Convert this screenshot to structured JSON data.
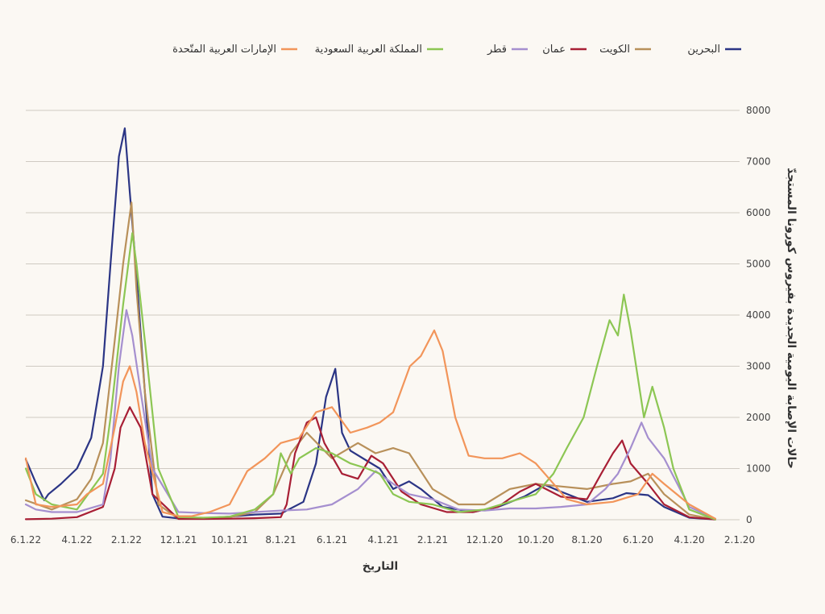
{
  "chart_data": {
    "type": "line",
    "title": "",
    "xlabel": "التاريخ",
    "ylabel": "حالات الإصابة اليومية الجديدة بفيروس كورونا المستجدّ",
    "ylim": [
      0,
      8000
    ],
    "yticks": [
      0,
      1000,
      2000,
      3000,
      4000,
      5000,
      6000,
      7000,
      8000
    ],
    "x_reversed": true,
    "x_domain": [
      "2020-02-01",
      "2022-06-01"
    ],
    "xticks": [
      {
        "date": "2020-02-01",
        "label": "2.1.20"
      },
      {
        "date": "2020-04-01",
        "label": "4.1.20"
      },
      {
        "date": "2020-06-01",
        "label": "6.1.20"
      },
      {
        "date": "2020-08-01",
        "label": "8.1.20"
      },
      {
        "date": "2020-10-01",
        "label": "10.1.20"
      },
      {
        "date": "2020-12-01",
        "label": "12.1.20"
      },
      {
        "date": "2021-02-01",
        "label": "2.1.21"
      },
      {
        "date": "2021-04-01",
        "label": "4.1.21"
      },
      {
        "date": "2021-06-01",
        "label": "6.1.21"
      },
      {
        "date": "2021-08-01",
        "label": "8.1.21"
      },
      {
        "date": "2021-10-01",
        "label": "10.1.21"
      },
      {
        "date": "2021-12-01",
        "label": "12.1.21"
      },
      {
        "date": "2022-02-01",
        "label": "2.1.22"
      },
      {
        "date": "2022-04-01",
        "label": "4.1.22"
      },
      {
        "date": "2022-06-01",
        "label": "6.1.22"
      }
    ],
    "legend_position": "top",
    "series": [
      {
        "name": "البحرين",
        "color": "#2b3585",
        "points": [
          [
            "2020-03-01",
            5
          ],
          [
            "2020-04-01",
            40
          ],
          [
            "2020-05-01",
            250
          ],
          [
            "2020-05-20",
            480
          ],
          [
            "2020-06-15",
            520
          ],
          [
            "2020-07-01",
            420
          ],
          [
            "2020-08-01",
            350
          ],
          [
            "2020-09-01",
            550
          ],
          [
            "2020-09-20",
            680
          ],
          [
            "2020-10-15",
            450
          ],
          [
            "2020-11-15",
            250
          ],
          [
            "2020-12-15",
            150
          ],
          [
            "2021-01-20",
            250
          ],
          [
            "2021-02-15",
            600
          ],
          [
            "2021-03-01",
            750
          ],
          [
            "2021-03-20",
            600
          ],
          [
            "2021-04-05",
            1000
          ],
          [
            "2021-04-20",
            1150
          ],
          [
            "2021-05-10",
            1350
          ],
          [
            "2021-05-20",
            1700
          ],
          [
            "2021-05-28",
            2950
          ],
          [
            "2021-06-08",
            2400
          ],
          [
            "2021-06-20",
            1100
          ],
          [
            "2021-07-05",
            350
          ],
          [
            "2021-08-01",
            120
          ],
          [
            "2021-09-01",
            100
          ],
          [
            "2021-10-01",
            60
          ],
          [
            "2021-11-01",
            30
          ],
          [
            "2021-12-01",
            25
          ],
          [
            "2021-12-20",
            60
          ],
          [
            "2022-01-01",
            500
          ],
          [
            "2022-01-10",
            2500
          ],
          [
            "2022-01-20",
            4800
          ],
          [
            "2022-01-28",
            6400
          ],
          [
            "2022-02-03",
            7650
          ],
          [
            "2022-02-10",
            7100
          ],
          [
            "2022-02-20",
            5000
          ],
          [
            "2022-03-01",
            3000
          ],
          [
            "2022-03-15",
            1600
          ],
          [
            "2022-04-01",
            1000
          ],
          [
            "2022-04-20",
            700
          ],
          [
            "2022-05-05",
            500
          ],
          [
            "2022-05-10",
            380
          ],
          [
            "2022-05-20",
            720
          ],
          [
            "2022-06-01",
            1180
          ]
        ]
      },
      {
        "name": "الكويت",
        "color": "#b8905a",
        "points": [
          [
            "2020-03-01",
            5
          ],
          [
            "2020-04-01",
            100
          ],
          [
            "2020-05-01",
            500
          ],
          [
            "2020-05-20",
            900
          ],
          [
            "2020-06-10",
            750
          ],
          [
            "2020-07-01",
            700
          ],
          [
            "2020-08-01",
            600
          ],
          [
            "2020-09-01",
            650
          ],
          [
            "2020-10-01",
            700
          ],
          [
            "2020-11-01",
            600
          ],
          [
            "2020-12-01",
            300
          ],
          [
            "2021-01-01",
            300
          ],
          [
            "2021-02-01",
            600
          ],
          [
            "2021-03-01",
            1300
          ],
          [
            "2021-03-20",
            1400
          ],
          [
            "2021-04-10",
            1300
          ],
          [
            "2021-05-01",
            1500
          ],
          [
            "2021-06-01",
            1200
          ],
          [
            "2021-07-01",
            1700
          ],
          [
            "2021-07-20",
            1300
          ],
          [
            "2021-08-10",
            500
          ],
          [
            "2021-09-01",
            150
          ],
          [
            "2021-10-01",
            50
          ],
          [
            "2021-11-01",
            20
          ],
          [
            "2021-12-01",
            20
          ],
          [
            "2021-12-25",
            300
          ],
          [
            "2022-01-10",
            2500
          ],
          [
            "2022-01-20",
            4500
          ],
          [
            "2022-01-26",
            6200
          ],
          [
            "2022-02-05",
            5000
          ],
          [
            "2022-02-15",
            3500
          ],
          [
            "2022-03-01",
            1500
          ],
          [
            "2022-03-15",
            800
          ],
          [
            "2022-04-01",
            400
          ],
          [
            "2022-05-01",
            200
          ],
          [
            "2022-06-01",
            380
          ]
        ]
      },
      {
        "name": "عمان",
        "color": "#a81f35",
        "points": [
          [
            "2020-03-01",
            5
          ],
          [
            "2020-04-01",
            50
          ],
          [
            "2020-05-01",
            300
          ],
          [
            "2020-05-20",
            700
          ],
          [
            "2020-06-10",
            1100
          ],
          [
            "2020-06-20",
            1550
          ],
          [
            "2020-07-01",
            1300
          ],
          [
            "2020-07-15",
            900
          ],
          [
            "2020-08-01",
            400
          ],
          [
            "2020-09-01",
            450
          ],
          [
            "2020-10-01",
            700
          ],
          [
            "2020-10-20",
            550
          ],
          [
            "2020-11-15",
            250
          ],
          [
            "2020-12-15",
            150
          ],
          [
            "2021-01-15",
            150
          ],
          [
            "2021-02-15",
            300
          ],
          [
            "2021-03-10",
            550
          ],
          [
            "2021-04-01",
            1100
          ],
          [
            "2021-04-15",
            1250
          ],
          [
            "2021-05-01",
            800
          ],
          [
            "2021-05-20",
            900
          ],
          [
            "2021-06-10",
            1500
          ],
          [
            "2021-06-20",
            2000
          ],
          [
            "2021-07-01",
            1900
          ],
          [
            "2021-07-15",
            1300
          ],
          [
            "2021-07-25",
            300
          ],
          [
            "2021-08-01",
            50
          ],
          [
            "2021-09-01",
            30
          ],
          [
            "2021-10-01",
            20
          ],
          [
            "2021-11-01",
            15
          ],
          [
            "2021-12-01",
            15
          ],
          [
            "2022-01-01",
            500
          ],
          [
            "2022-01-15",
            1800
          ],
          [
            "2022-01-28",
            2200
          ],
          [
            "2022-02-08",
            1800
          ],
          [
            "2022-02-15",
            1000
          ],
          [
            "2022-03-01",
            250
          ],
          [
            "2022-04-01",
            50
          ],
          [
            "2022-05-01",
            20
          ],
          [
            "2022-06-01",
            10
          ]
        ]
      },
      {
        "name": "قطر",
        "color": "#a58fcf",
        "points": [
          [
            "2020-03-01",
            20
          ],
          [
            "2020-04-01",
            250
          ],
          [
            "2020-05-01",
            1200
          ],
          [
            "2020-05-20",
            1600
          ],
          [
            "2020-05-28",
            1900
          ],
          [
            "2020-06-10",
            1400
          ],
          [
            "2020-06-25",
            900
          ],
          [
            "2020-07-10",
            600
          ],
          [
            "2020-08-01",
            300
          ],
          [
            "2020-09-01",
            250
          ],
          [
            "2020-10-01",
            220
          ],
          [
            "2020-11-01",
            220
          ],
          [
            "2020-12-01",
            180
          ],
          [
            "2021-01-01",
            200
          ],
          [
            "2021-02-01",
            400
          ],
          [
            "2021-03-01",
            500
          ],
          [
            "2021-03-20",
            700
          ],
          [
            "2021-04-10",
            950
          ],
          [
            "2021-05-01",
            600
          ],
          [
            "2021-06-01",
            300
          ],
          [
            "2021-07-01",
            200
          ],
          [
            "2021-08-01",
            180
          ],
          [
            "2021-09-01",
            150
          ],
          [
            "2021-10-01",
            120
          ],
          [
            "2021-11-01",
            130
          ],
          [
            "2021-12-01",
            150
          ],
          [
            "2022-01-01",
            1000
          ],
          [
            "2022-01-15",
            2500
          ],
          [
            "2022-01-25",
            3600
          ],
          [
            "2022-02-01",
            4100
          ],
          [
            "2022-02-10",
            3000
          ],
          [
            "2022-02-20",
            1200
          ],
          [
            "2022-03-01",
            300
          ],
          [
            "2022-04-01",
            150
          ],
          [
            "2022-05-01",
            150
          ],
          [
            "2022-05-20",
            200
          ],
          [
            "2022-06-01",
            300
          ]
        ]
      },
      {
        "name": "المملكة العربية السعودية",
        "color": "#8cc653",
        "points": [
          [
            "2020-03-01",
            5
          ],
          [
            "2020-04-01",
            200
          ],
          [
            "2020-04-20",
            1000
          ],
          [
            "2020-05-01",
            1800
          ],
          [
            "2020-05-15",
            2600
          ],
          [
            "2020-05-25",
            2000
          ],
          [
            "2020-06-10",
            3700
          ],
          [
            "2020-06-18",
            4400
          ],
          [
            "2020-06-25",
            3600
          ],
          [
            "2020-07-05",
            3900
          ],
          [
            "2020-07-20",
            3000
          ],
          [
            "2020-08-05",
            2000
          ],
          [
            "2020-08-25",
            1400
          ],
          [
            "2020-09-10",
            900
          ],
          [
            "2020-10-01",
            500
          ],
          [
            "2020-11-01",
            350
          ],
          [
            "2020-12-01",
            200
          ],
          [
            "2021-01-01",
            150
          ],
          [
            "2021-02-01",
            300
          ],
          [
            "2021-03-01",
            350
          ],
          [
            "2021-03-20",
            500
          ],
          [
            "2021-04-05",
            900
          ],
          [
            "2021-04-20",
            1000
          ],
          [
            "2021-05-10",
            1100
          ],
          [
            "2021-06-01",
            1300
          ],
          [
            "2021-06-20",
            1400
          ],
          [
            "2021-07-10",
            1200
          ],
          [
            "2021-07-20",
            900
          ],
          [
            "2021-08-01",
            1300
          ],
          [
            "2021-08-10",
            500
          ],
          [
            "2021-09-01",
            200
          ],
          [
            "2021-10-01",
            60
          ],
          [
            "2021-11-01",
            40
          ],
          [
            "2021-12-01",
            50
          ],
          [
            "2021-12-25",
            1000
          ],
          [
            "2022-01-10",
            3500
          ],
          [
            "2022-01-20",
            5000
          ],
          [
            "2022-01-25",
            5600
          ],
          [
            "2022-02-05",
            4200
          ],
          [
            "2022-02-20",
            2000
          ],
          [
            "2022-03-01",
            900
          ],
          [
            "2022-04-01",
            200
          ],
          [
            "2022-05-01",
            300
          ],
          [
            "2022-05-20",
            500
          ],
          [
            "2022-06-01",
            1000
          ]
        ]
      },
      {
        "name": "الإمارات العربية المتّحدة",
        "color": "#f2955a",
        "points": [
          [
            "2020-03-01",
            20
          ],
          [
            "2020-04-01",
            300
          ],
          [
            "2020-05-01",
            700
          ],
          [
            "2020-05-15",
            900
          ],
          [
            "2020-06-01",
            500
          ],
          [
            "2020-07-01",
            350
          ],
          [
            "2020-08-01",
            300
          ],
          [
            "2020-08-25",
            400
          ],
          [
            "2020-09-15",
            800
          ],
          [
            "2020-10-01",
            1100
          ],
          [
            "2020-10-20",
            1300
          ],
          [
            "2020-11-10",
            1200
          ],
          [
            "2020-12-01",
            1200
          ],
          [
            "2020-12-20",
            1250
          ],
          [
            "2021-01-05",
            2000
          ],
          [
            "2021-01-20",
            3300
          ],
          [
            "2021-01-30",
            3700
          ],
          [
            "2021-02-15",
            3200
          ],
          [
            "2021-02-28",
            3000
          ],
          [
            "2021-03-20",
            2100
          ],
          [
            "2021-04-05",
            1900
          ],
          [
            "2021-04-20",
            1800
          ],
          [
            "2021-05-10",
            1700
          ],
          [
            "2021-06-01",
            2200
          ],
          [
            "2021-06-20",
            2100
          ],
          [
            "2021-07-10",
            1600
          ],
          [
            "2021-08-01",
            1500
          ],
          [
            "2021-08-20",
            1200
          ],
          [
            "2021-09-10",
            950
          ],
          [
            "2021-10-01",
            300
          ],
          [
            "2021-10-25",
            150
          ],
          [
            "2021-11-15",
            70
          ],
          [
            "2021-12-01",
            70
          ],
          [
            "2021-12-20",
            150
          ],
          [
            "2022-01-10",
            1500
          ],
          [
            "2022-01-20",
            2500
          ],
          [
            "2022-01-28",
            3000
          ],
          [
            "2022-02-05",
            2700
          ],
          [
            "2022-02-15",
            1800
          ],
          [
            "2022-03-01",
            700
          ],
          [
            "2022-03-20",
            500
          ],
          [
            "2022-04-01",
            300
          ],
          [
            "2022-05-01",
            250
          ],
          [
            "2022-05-20",
            300
          ],
          [
            "2022-06-01",
            1200
          ]
        ]
      }
    ]
  }
}
